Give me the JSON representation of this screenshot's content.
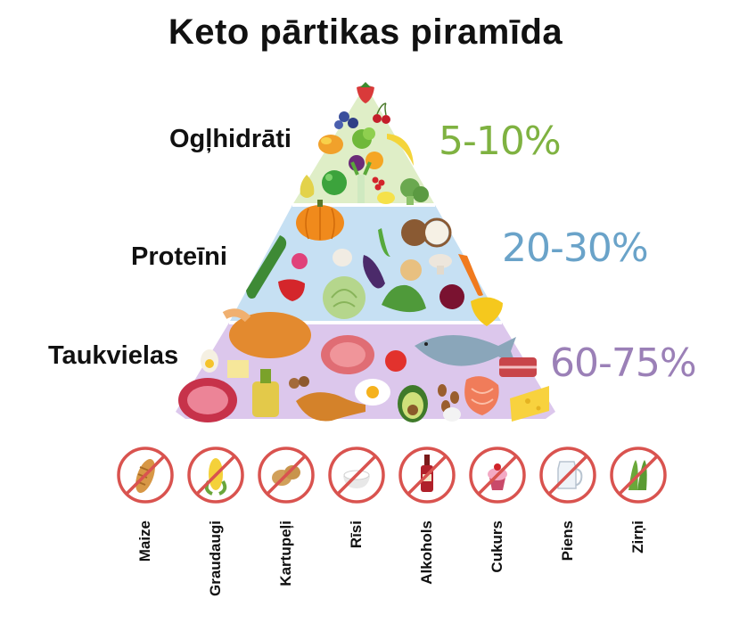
{
  "title": "Keto pārtikas piramīda",
  "tiers": [
    {
      "label": "Ogļhidrāti",
      "percent": "5-10%",
      "color": "#7fb241",
      "bg": "#dfeec7"
    },
    {
      "label": "Proteīni",
      "percent": "20-30%",
      "color": "#6aa3c9",
      "bg": "#c6e0f3"
    },
    {
      "label": "Taukvielas",
      "percent": "60-75%",
      "color": "#9b80b7",
      "bg": "#dcc7ec"
    }
  ],
  "banned_color": "#d9534f",
  "banned": [
    {
      "label": "Maize",
      "icon": "bread-icon"
    },
    {
      "label": "Graudaugi",
      "icon": "corn-icon"
    },
    {
      "label": "Kartupeļi",
      "icon": "potato-icon"
    },
    {
      "label": "Rīsi",
      "icon": "rice-bowl-icon"
    },
    {
      "label": "Alkohols",
      "icon": "wine-bottle-icon"
    },
    {
      "label": "Cukurs",
      "icon": "cupcake-icon"
    },
    {
      "label": "Piens",
      "icon": "milk-jug-icon"
    },
    {
      "label": "Zirņi",
      "icon": "peas-icon"
    }
  ]
}
